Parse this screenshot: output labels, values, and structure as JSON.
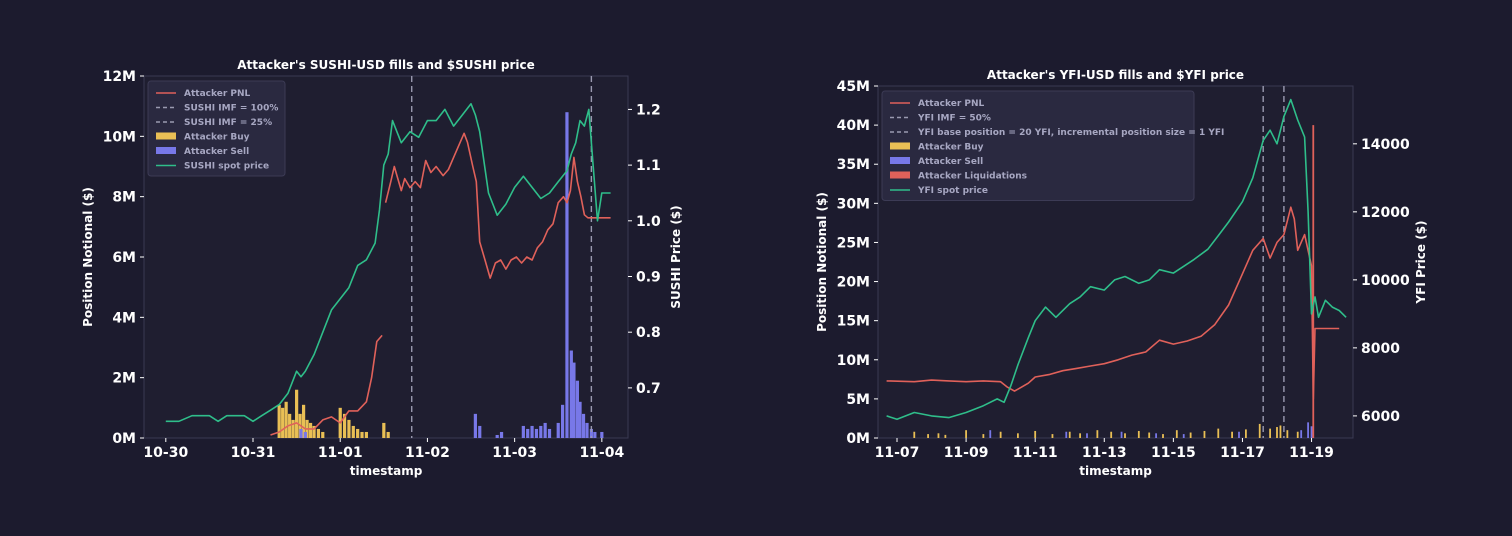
{
  "chart_data": [
    {
      "type": "line",
      "title": "Attacker's SUSHI-USD fills and $SUSHI price",
      "xlabel": "timestamp",
      "ylabel": "Position Notional ($)",
      "y2label": "SUSHI Price ($)",
      "x_ticks": [
        "10-30",
        "10-31",
        "11-01",
        "11-02",
        "11-03",
        "11-04"
      ],
      "y_ticks": [
        "0M",
        "2M",
        "4M",
        "6M",
        "8M",
        "10M",
        "12M"
      ],
      "y2_ticks": [
        "0.7",
        "0.8",
        "0.9",
        "1.0",
        "1.1",
        "1.2"
      ],
      "ylim": [
        0,
        12
      ],
      "y2lim": [
        0.61,
        1.26
      ],
      "xlim": [
        -0.25,
        5.3
      ],
      "legend_position": "top-left",
      "legend": [
        "Attacker PNL",
        "SUSHI IMF = 100%",
        "SUSHI IMF = 25%",
        "Attacker Buy",
        "Attacker Sell",
        "SUSHI spot price"
      ],
      "vlines": [
        {
          "name": "SUSHI IMF = 100%",
          "x": 2.82
        },
        {
          "name": "SUSHI IMF = 25%",
          "x": 4.88
        }
      ],
      "series": [
        {
          "name": "Attacker PNL",
          "x": [
            2.52,
            2.58,
            2.62,
            2.66,
            2.7,
            2.74,
            2.8,
            2.86,
            2.92,
            2.98,
            3.04,
            3.1,
            3.18,
            3.24,
            3.3,
            3.36,
            3.42,
            3.46,
            3.52,
            3.56,
            3.6,
            3.66,
            3.72,
            3.78,
            3.84,
            3.9,
            3.96,
            4.02,
            4.08,
            4.14,
            4.2,
            4.26,
            4.32,
            4.38,
            4.44,
            4.5,
            4.56,
            4.6,
            4.64,
            4.68,
            4.72,
            4.76,
            4.8,
            4.84,
            4.9,
            5.0,
            5.1
          ],
          "values": [
            7.8,
            8.5,
            9.0,
            8.6,
            8.2,
            8.6,
            8.3,
            8.5,
            8.3,
            9.2,
            8.8,
            9.0,
            8.7,
            8.9,
            9.3,
            9.7,
            10.1,
            9.8,
            9.0,
            8.5,
            6.5,
            5.9,
            5.3,
            5.8,
            5.9,
            5.6,
            5.9,
            6.0,
            5.8,
            6.0,
            5.9,
            6.3,
            6.5,
            6.9,
            7.1,
            7.8,
            8.0,
            7.8,
            8.2,
            9.3,
            8.5,
            8.0,
            7.4,
            7.3,
            7.3,
            7.3,
            7.3
          ]
        },
        {
          "name": "Attacker PNL (early)",
          "x": [
            1.2,
            1.3,
            1.4,
            1.5,
            1.6,
            1.7,
            1.8,
            1.9,
            2.0,
            2.1,
            2.2,
            2.3,
            2.36,
            2.42,
            2.48
          ],
          "values": [
            0.1,
            0.2,
            0.4,
            0.5,
            0.3,
            0.3,
            0.6,
            0.7,
            0.5,
            0.9,
            0.9,
            1.2,
            2.0,
            3.2,
            3.4
          ]
        },
        {
          "name": "SUSHI spot price",
          "x": [
            0,
            0.15,
            0.3,
            0.4,
            0.5,
            0.6,
            0.7,
            0.8,
            0.9,
            1.0,
            1.1,
            1.2,
            1.3,
            1.4,
            1.5,
            1.55,
            1.6,
            1.7,
            1.8,
            1.9,
            2.0,
            2.1,
            2.2,
            2.3,
            2.4,
            2.45,
            2.5,
            2.55,
            2.6,
            2.7,
            2.8,
            2.9,
            3.0,
            3.1,
            3.2,
            3.3,
            3.4,
            3.5,
            3.55,
            3.6,
            3.7,
            3.8,
            3.9,
            4.0,
            4.1,
            4.2,
            4.3,
            4.4,
            4.5,
            4.6,
            4.65,
            4.7,
            4.75,
            4.8,
            4.85,
            4.9,
            4.95,
            5.0,
            5.05,
            5.1
          ],
          "values": [
            0.64,
            0.64,
            0.65,
            0.65,
            0.65,
            0.64,
            0.65,
            0.65,
            0.65,
            0.64,
            0.65,
            0.66,
            0.67,
            0.69,
            0.73,
            0.72,
            0.73,
            0.76,
            0.8,
            0.84,
            0.86,
            0.88,
            0.92,
            0.93,
            0.96,
            1.02,
            1.1,
            1.12,
            1.18,
            1.14,
            1.16,
            1.15,
            1.18,
            1.18,
            1.2,
            1.17,
            1.19,
            1.21,
            1.19,
            1.16,
            1.05,
            1.01,
            1.03,
            1.06,
            1.08,
            1.06,
            1.04,
            1.05,
            1.07,
            1.09,
            1.12,
            1.14,
            1.18,
            1.17,
            1.2,
            1.1,
            1.0,
            1.05,
            1.05,
            1.05
          ]
        }
      ],
      "bars_buy": {
        "name": "Attacker Buy",
        "x": [
          1.3,
          1.34,
          1.38,
          1.42,
          1.46,
          1.5,
          1.54,
          1.58,
          1.62,
          1.66,
          1.7,
          1.75,
          1.8,
          2.0,
          2.05,
          2.1,
          2.15,
          2.2,
          2.25,
          2.3,
          2.5,
          2.55
        ],
        "values": [
          1.1,
          1.0,
          1.2,
          0.8,
          0.6,
          1.6,
          0.8,
          1.1,
          0.6,
          0.5,
          0.4,
          0.3,
          0.2,
          1.0,
          0.8,
          0.6,
          0.4,
          0.3,
          0.2,
          0.2,
          0.5,
          0.2
        ]
      },
      "bars_sell": {
        "name": "Attacker Sell",
        "x": [
          1.55,
          1.6,
          3.55,
          3.6,
          3.8,
          3.85,
          4.1,
          4.15,
          4.2,
          4.25,
          4.3,
          4.35,
          4.4,
          4.5,
          4.55,
          4.6,
          4.65,
          4.68,
          4.72,
          4.75,
          4.79,
          4.83,
          4.88,
          4.92,
          5.0
        ],
        "values": [
          0.3,
          0.2,
          0.8,
          0.4,
          0.1,
          0.2,
          0.4,
          0.3,
          0.4,
          0.3,
          0.4,
          0.5,
          0.3,
          0.5,
          1.1,
          10.8,
          2.9,
          2.5,
          1.9,
          1.2,
          0.8,
          0.5,
          0.3,
          0.2,
          0.2
        ]
      }
    },
    {
      "type": "line",
      "title": "Attacker's YFI-USD fills and $YFI price",
      "xlabel": "timestamp",
      "ylabel": "Position Notional ($)",
      "y2label": "YFI Price ($)",
      "x_ticks": [
        "11-07",
        "11-09",
        "11-11",
        "11-13",
        "11-15",
        "11-17",
        "11-19"
      ],
      "y_ticks": [
        "0M",
        "5M",
        "10M",
        "15M",
        "20M",
        "25M",
        "30M",
        "35M",
        "40M",
        "45M"
      ],
      "y2_ticks": [
        "6000",
        "8000",
        "10000",
        "12000",
        "14000"
      ],
      "ylim": [
        0,
        45
      ],
      "y2lim": [
        5350,
        15700
      ],
      "xlim": [
        -0.55,
        13.2
      ],
      "legend_position": "top-left",
      "legend": [
        "Attacker PNL",
        "YFI IMF = 50%",
        "YFI base position = 20 YFI, incremental position size = 1 YFI",
        "Attacker Buy",
        "Attacker Sell",
        "Attacker Liquidations",
        "YFI spot price"
      ],
      "vlines": [
        {
          "name": "YFI IMF = 50%",
          "x": 10.6
        },
        {
          "name": "YFI base position = 20 YFI, incremental position size = 1 YFI",
          "x": 11.2
        }
      ],
      "series": [
        {
          "name": "Attacker PNL",
          "x": [
            -0.3,
            0.5,
            1.0,
            1.5,
            2.0,
            2.5,
            3.0,
            3.2,
            3.4,
            3.6,
            3.8,
            4.0,
            4.4,
            4.8,
            5.2,
            5.6,
            6.0,
            6.4,
            6.8,
            7.2,
            7.6,
            8.0,
            8.4,
            8.8,
            9.2,
            9.6,
            10.0,
            10.3,
            10.6,
            10.8,
            11.0,
            11.2,
            11.4,
            11.5,
            11.6,
            11.8,
            12.0,
            12.05,
            12.1,
            12.2,
            12.4,
            12.6,
            12.8
          ],
          "values": [
            7.3,
            7.2,
            7.4,
            7.3,
            7.2,
            7.3,
            7.2,
            6.5,
            6.0,
            6.5,
            7.0,
            7.8,
            8.1,
            8.6,
            8.9,
            9.2,
            9.5,
            10.0,
            10.6,
            11.0,
            12.5,
            12.0,
            12.4,
            13.0,
            14.5,
            17.0,
            21.0,
            24.0,
            25.5,
            23.0,
            25.0,
            26.0,
            29.5,
            28.0,
            24.0,
            26.0,
            22.0,
            5.0,
            14.0,
            14.0,
            14.0,
            14.0,
            14.0
          ]
        },
        {
          "name": "YFI spot price",
          "x": [
            -0.3,
            0.0,
            0.5,
            1.0,
            1.5,
            2.0,
            2.5,
            2.9,
            3.1,
            3.3,
            3.5,
            3.8,
            4.0,
            4.3,
            4.6,
            5.0,
            5.3,
            5.6,
            6.0,
            6.3,
            6.6,
            7.0,
            7.3,
            7.6,
            8.0,
            8.3,
            8.6,
            9.0,
            9.3,
            9.6,
            10.0,
            10.3,
            10.6,
            10.8,
            11.0,
            11.2,
            11.4,
            11.6,
            11.8,
            11.9,
            12.0,
            12.1,
            12.2,
            12.4,
            12.6,
            12.8,
            13.0
          ],
          "values": [
            6000,
            5900,
            6100,
            6000,
            5950,
            6100,
            6300,
            6500,
            6400,
            6900,
            7500,
            8300,
            8800,
            9200,
            8900,
            9300,
            9500,
            9800,
            9700,
            10000,
            10100,
            9900,
            10000,
            10300,
            10200,
            10400,
            10600,
            10900,
            11300,
            11700,
            12300,
            13000,
            14100,
            14400,
            14000,
            14800,
            15300,
            14700,
            14200,
            12000,
            9000,
            9500,
            8900,
            9400,
            9200,
            9100,
            8900
          ]
        }
      ],
      "bars_buy": {
        "name": "Attacker Buy",
        "x": [
          0.5,
          0.9,
          1.2,
          1.4,
          2.0,
          2.5,
          3.0,
          3.5,
          4.0,
          4.5,
          5.0,
          5.3,
          5.8,
          6.2,
          6.6,
          7.0,
          7.3,
          7.7,
          8.1,
          8.5,
          8.9,
          9.3,
          9.7,
          10.1,
          10.5,
          10.8,
          11.0,
          11.1,
          11.3,
          11.6
        ],
        "values": [
          0.8,
          0.5,
          0.6,
          0.4,
          1.0,
          0.5,
          0.8,
          0.6,
          0.9,
          0.5,
          0.8,
          0.6,
          1.0,
          0.8,
          0.6,
          0.9,
          0.7,
          0.5,
          1.0,
          0.7,
          0.9,
          1.2,
          0.8,
          1.1,
          1.8,
          1.2,
          1.4,
          1.6,
          1.0,
          0.8
        ]
      },
      "bars_sell": {
        "name": "Attacker Sell",
        "x": [
          2.7,
          4.9,
          5.5,
          6.5,
          7.5,
          8.3,
          9.9,
          11.7,
          11.9,
          12.0
        ],
        "values": [
          1.0,
          0.8,
          0.6,
          0.8,
          0.6,
          0.5,
          0.8,
          1.0,
          2.0,
          1.5
        ]
      },
      "bars_liq": {
        "name": "Attacker Liquidations",
        "x": [
          12.05
        ],
        "values": [
          40.0
        ]
      }
    }
  ]
}
